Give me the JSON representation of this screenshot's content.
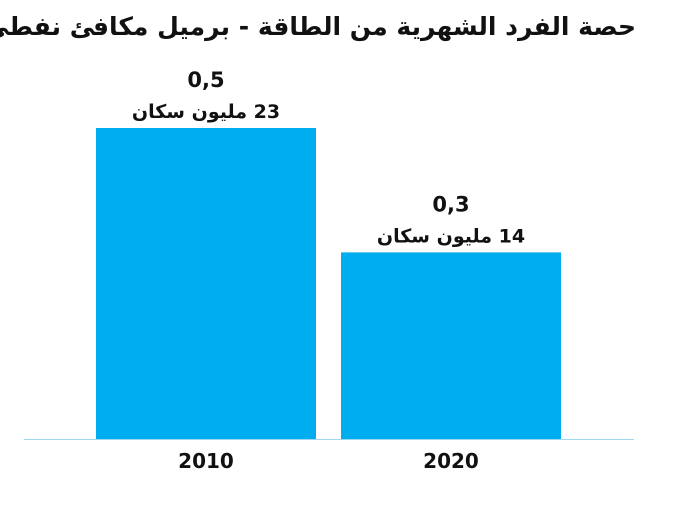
{
  "chart_data": {
    "type": "bar",
    "title": "حصة الفرد الشهرية من الطاقة - برميل مكافئ نفطي",
    "xlabel": "",
    "ylabel": "",
    "categories": [
      "2010",
      "2020"
    ],
    "values": [
      0.5,
      0.3
    ],
    "value_labels": [
      "0,5",
      "0,3"
    ],
    "bar_notes": [
      "23 مليون سكان",
      "14 مليون سكان"
    ],
    "ylim": [
      0,
      0.5
    ],
    "grid": false,
    "legend": "none",
    "bar_color": "#00AEEF",
    "axis_color": "#9FD8F0"
  }
}
